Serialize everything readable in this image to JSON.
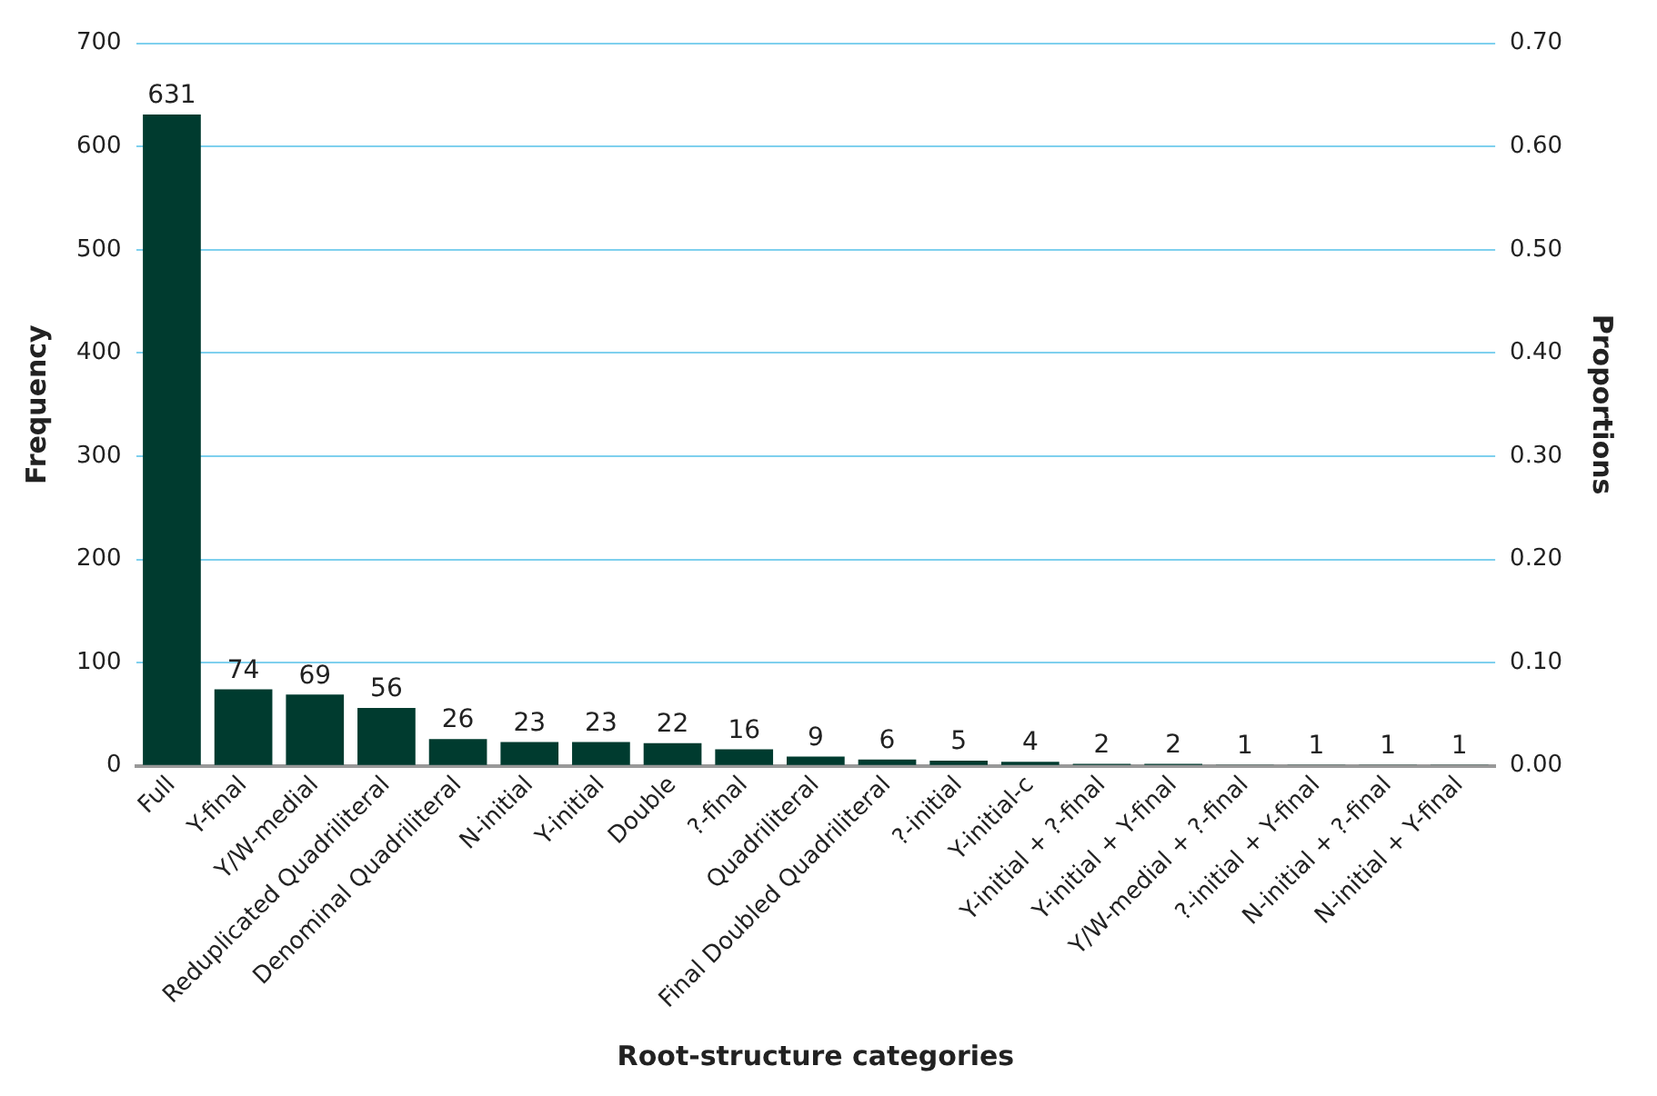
{
  "chart_data": {
    "type": "bar",
    "xlabel": "Root-structure categories",
    "ylabel": "Frequency",
    "y2label": "Proportions",
    "categories": [
      "Full",
      "Y-final",
      "Y/W-medial",
      "Reduplicated Quadriliteral",
      "Denominal Quadriliteral",
      "N-initial",
      "Y-initial",
      "Double",
      "?-final",
      "Quadriliteral",
      "Final Doubled Quadriliteral",
      "?-initial",
      "Y-initial-c",
      "Y-initial + ?-final",
      "Y-initial + Y-final",
      "Y/W-medial + ?-final",
      "?-initial + Y-final",
      "N-initial + ?-final",
      "N-initial + Y-final"
    ],
    "values": [
      631,
      74,
      69,
      56,
      26,
      23,
      23,
      22,
      16,
      9,
      6,
      5,
      4,
      2,
      2,
      1,
      1,
      1,
      1
    ],
    "color": "#003b2f",
    "ylim": [
      0,
      700
    ],
    "yticks": [
      0,
      100,
      200,
      300,
      400,
      500,
      600,
      700
    ],
    "y2lim": [
      0,
      0.7
    ],
    "y2ticks": [
      {
        "value": 0,
        "label": "0.00"
      },
      {
        "value": 0.1,
        "label": "0.10"
      },
      {
        "value": 0.2,
        "label": "0.20"
      },
      {
        "value": 0.3,
        "label": "0.30"
      },
      {
        "value": 0.4,
        "label": "0.40"
      },
      {
        "value": 0.5,
        "label": "0.50"
      },
      {
        "value": 0.6,
        "label": "0.60"
      },
      {
        "value": 0.7,
        "label": "0.70"
      }
    ],
    "grid": "y",
    "data_labels": true,
    "legend": false
  }
}
